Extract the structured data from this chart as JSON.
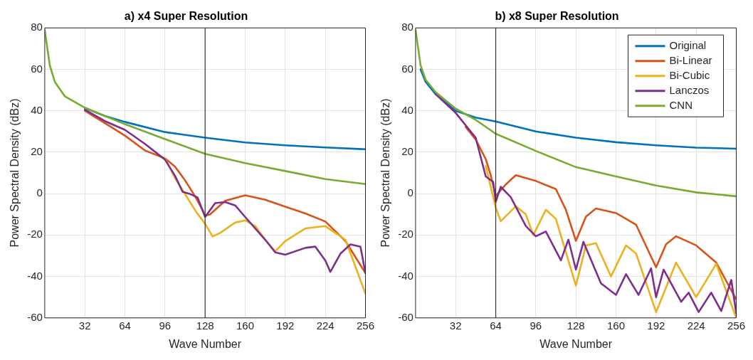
{
  "chart_data": [
    {
      "type": "line",
      "title": "a) x4 Super Resolution",
      "xlabel": "Wave Number",
      "ylabel": "Power Spectral Density (dBz)",
      "xlim": [
        0,
        256
      ],
      "xticks": [
        32,
        64,
        96,
        128,
        160,
        192,
        224,
        256
      ],
      "ylim": [
        -60,
        80
      ],
      "yticks": [
        -60,
        -40,
        -20,
        0,
        20,
        40,
        60,
        80
      ],
      "grid": true,
      "legend": false,
      "line_style": "solid",
      "marker": "none",
      "ref_lines": [
        {
          "axis": "x",
          "value": 128,
          "color": "#333333"
        }
      ],
      "series": [
        {
          "color": "#0072bd",
          "x": [
            32,
            48,
            64,
            96,
            128,
            160,
            192,
            224,
            256
          ],
          "values": [
            41.3,
            37.5,
            34.6,
            29.7,
            27,
            24.7,
            23.3,
            22.3,
            21.4
          ]
        },
        {
          "color": "#d95319",
          "x": [
            32,
            48,
            64,
            80,
            96,
            104,
            112,
            120,
            126,
            128,
            132,
            144,
            160,
            176,
            192,
            208,
            224,
            240,
            256
          ],
          "values": [
            40,
            34,
            28,
            20.8,
            17,
            13,
            6.4,
            -1.3,
            -8,
            -10.7,
            -10,
            -3.5,
            -0.8,
            -3,
            -6.3,
            -9.6,
            -13.5,
            -22.9,
            -38.4
          ]
        },
        {
          "color": "#edb120",
          "x": [
            96,
            104,
            112,
            120,
            128,
            134,
            140,
            152,
            160,
            168,
            176,
            184,
            192,
            208,
            224,
            240,
            256
          ],
          "values": [
            17,
            7.5,
            -0.2,
            -8,
            -14.6,
            -20.7,
            -19,
            -14,
            -12.9,
            -15.6,
            -22.3,
            -27.9,
            -22.9,
            -16.8,
            -15.7,
            -22.3,
            -48.3
          ]
        },
        {
          "color": "#7e2f8e",
          "x": [
            32,
            48,
            64,
            80,
            96,
            104,
            110,
            116,
            122,
            128,
            136,
            144,
            152,
            160,
            176,
            184,
            192,
            208,
            216,
            224,
            228,
            236,
            244,
            252,
            256
          ],
          "values": [
            40.5,
            35,
            30.8,
            24,
            16.4,
            8.6,
            0.9,
            -0.2,
            -1.9,
            -11.3,
            -4.6,
            -4.1,
            -5.7,
            -11.3,
            -22.3,
            -28.4,
            -29.5,
            -26.2,
            -25.6,
            -32.3,
            -37.8,
            -29,
            -24.5,
            -25.6,
            -38.4
          ]
        },
        {
          "color": "#77ac30",
          "x": [
            0,
            4,
            8,
            16,
            32,
            64,
            96,
            128,
            160,
            192,
            224,
            256
          ],
          "values": [
            79,
            62,
            54,
            47,
            41.5,
            33.5,
            26.3,
            19.2,
            14.7,
            10.9,
            7,
            4.6
          ]
        }
      ]
    },
    {
      "type": "line",
      "title": "b) x8 Super Resolution",
      "xlabel": "Wave Number",
      "ylabel": "Power Spectral Density (dBz)",
      "xlim": [
        0,
        256
      ],
      "xticks": [
        32,
        64,
        96,
        128,
        160,
        192,
        224,
        256
      ],
      "ylim": [
        -60,
        80
      ],
      "yticks": [
        -60,
        -40,
        -20,
        0,
        20,
        40,
        60,
        80
      ],
      "grid": true,
      "legend": "top right",
      "line_style": "solid",
      "marker": "none",
      "ref_lines": [
        {
          "axis": "x",
          "value": 64,
          "color": "#333333"
        }
      ],
      "series": [
        {
          "name": "Original",
          "color": "#0072bd",
          "x": [
            4,
            8,
            16,
            32,
            48,
            64,
            96,
            128,
            160,
            192,
            224,
            256
          ],
          "values": [
            60,
            54,
            48,
            40,
            36.7,
            34.8,
            30,
            27,
            24.8,
            23.3,
            22.2,
            21.7
          ]
        },
        {
          "name": "Bi-Linear",
          "color": "#d95319",
          "x": [
            40,
            48,
            56,
            60,
            64,
            72,
            80,
            96,
            112,
            120,
            128,
            136,
            144,
            160,
            176,
            192,
            200,
            208,
            224,
            240,
            256
          ],
          "values": [
            32.2,
            26.1,
            16.7,
            8.9,
            -1.1,
            4.4,
            8.9,
            6.1,
            2.2,
            -7.8,
            -22.8,
            -11.1,
            -7.2,
            -9.4,
            -15,
            -35.6,
            -24.4,
            -20.6,
            -25,
            -33.3,
            -51.1
          ]
        },
        {
          "name": "Bi-Cubic",
          "color": "#edb120",
          "x": [
            56,
            64,
            68,
            80,
            88,
            94,
            104,
            112,
            128,
            136,
            144,
            156,
            168,
            176,
            192,
            208,
            224,
            240,
            256
          ],
          "values": [
            13.3,
            -6.7,
            -13.3,
            -6.1,
            -10,
            -20,
            -7.8,
            -12.2,
            -44.4,
            -25,
            -23.9,
            -40,
            -25,
            -28.9,
            -57.2,
            -33.3,
            -50,
            -33.9,
            -60
          ]
        },
        {
          "name": "Lanczos",
          "color": "#7e2f8e",
          "x": [
            16,
            32,
            48,
            56,
            62,
            64,
            68,
            76,
            88,
            96,
            104,
            116,
            122,
            128,
            134,
            148,
            160,
            168,
            178,
            188,
            192,
            198,
            212,
            218,
            226,
            236,
            244,
            252,
            256
          ],
          "values": [
            48,
            39,
            27,
            8.3,
            5.6,
            -3.9,
            3.3,
            -1.7,
            -15.6,
            -20.6,
            -18.3,
            -32.2,
            -22.2,
            -36.7,
            -23.3,
            -43.3,
            -48.9,
            -38.9,
            -48.9,
            -36.1,
            -50,
            -36.7,
            -52.2,
            -47.8,
            -57.2,
            -47.8,
            -56.7,
            -41.7,
            -57.8
          ]
        },
        {
          "name": "CNN",
          "color": "#77ac30",
          "x": [
            0,
            4,
            8,
            16,
            32,
            48,
            64,
            96,
            128,
            160,
            192,
            224,
            256
          ],
          "values": [
            79,
            62,
            55,
            49,
            41,
            35.6,
            28.9,
            20.6,
            12.8,
            8.3,
            3.9,
            0.6,
            -1.3
          ]
        }
      ]
    }
  ]
}
